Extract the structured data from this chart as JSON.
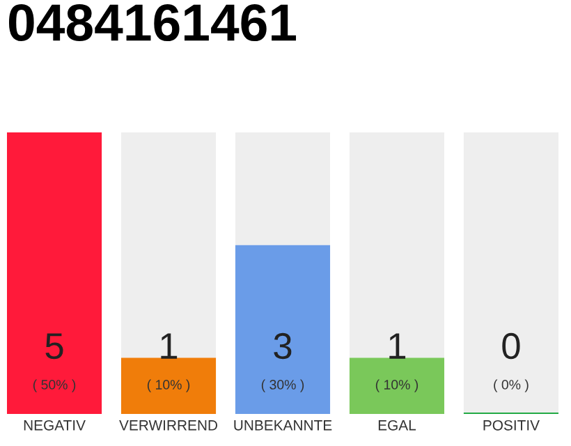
{
  "chart_data": {
    "type": "bar",
    "title": "0484161461",
    "stacked": true,
    "ylim": [
      0,
      5
    ],
    "tick_labels": "x",
    "grid": false,
    "categories": [
      "NEGATIV",
      "VERWIRREND",
      "UNBEKANNTE",
      "EGAL",
      "POSITIV"
    ],
    "series": [
      {
        "values": [
          5,
          1,
          3,
          1,
          0
        ],
        "colors": [
          "#ff1a3a",
          "#f07d0a",
          "#6a9ce8",
          "#7ac85a",
          "#22aa44"
        ],
        "value_labels": [
          "5\n( 50% )",
          "1\n( 10% )",
          "3\n( 30% )",
          "1\n( 10% )",
          "0\n( 0% )"
        ]
      },
      {
        "values": [
          0,
          4,
          2,
          4,
          5
        ],
        "color": "#eeeeee"
      }
    ]
  }
}
